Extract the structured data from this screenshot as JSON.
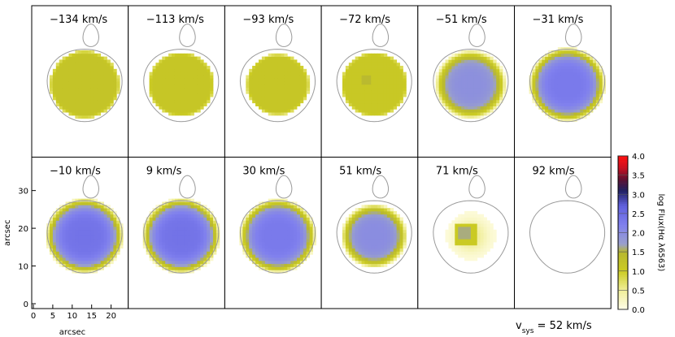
{
  "chart_data": {
    "type": "heatmap",
    "panels": [
      {
        "velocity_label": "−134 km/s",
        "velocity": -134,
        "peak": 1.2,
        "radius": 1.0,
        "hole": 0
      },
      {
        "velocity_label": "−113 km/s",
        "velocity": -113,
        "peak": 1.15,
        "radius": 0.95,
        "hole": 0
      },
      {
        "velocity_label": "−93 km/s",
        "velocity": -93,
        "peak": 1.15,
        "radius": 0.9,
        "hole": 0
      },
      {
        "velocity_label": "−72 km/s",
        "velocity": -72,
        "peak": 1.1,
        "radius": 0.95,
        "hole": 1
      },
      {
        "velocity_label": "−51 km/s",
        "velocity": -51,
        "peak": 1.95,
        "radius": 1.02,
        "hole": 0
      },
      {
        "velocity_label": "−31 km/s",
        "velocity": -31,
        "peak": 2.3,
        "radius": 1.1,
        "hole": 0
      },
      {
        "velocity_label": "−10 km/s",
        "velocity": -10,
        "peak": 2.4,
        "radius": 1.12,
        "hole": 0
      },
      {
        "velocity_label": "9 km/s",
        "velocity": 9,
        "peak": 2.4,
        "radius": 1.12,
        "hole": 0
      },
      {
        "velocity_label": "30 km/s",
        "velocity": 30,
        "peak": 2.3,
        "radius": 1.1,
        "hole": 0
      },
      {
        "velocity_label": "51 km/s",
        "velocity": 51,
        "peak": 2.0,
        "radius": 0.95,
        "hole": 0
      },
      {
        "velocity_label": "71 km/s",
        "velocity": 71,
        "peak": 1.2,
        "radius": 0.7,
        "hole": 2
      },
      {
        "velocity_label": "92 km/s",
        "velocity": 92,
        "peak": 0.0,
        "radius": 0.0,
        "hole": 0
      }
    ],
    "xlabel": "arcsec",
    "ylabel": "arcsec",
    "x_ticks": [
      "0",
      "5",
      "10",
      "15",
      "20"
    ],
    "y_ticks": [
      "0",
      "10",
      "20",
      "30"
    ],
    "xlim": [
      0,
      24
    ],
    "ylim": [
      0,
      38
    ],
    "colorbar": {
      "label": "log Flux(Hα λ6563)",
      "range": [
        0.0,
        4.0
      ],
      "ticks": [
        "0.0",
        "0.5",
        "1.0",
        "1.5",
        "2.0",
        "2.5",
        "3.0",
        "3.5",
        "4.0"
      ],
      "stops": [
        {
          "v": 0.0,
          "c": "#fffde8"
        },
        {
          "v": 0.5,
          "c": "#f0ee99"
        },
        {
          "v": 1.0,
          "c": "#cccc22"
        },
        {
          "v": 1.5,
          "c": "#b8b830"
        },
        {
          "v": 1.7,
          "c": "#9aa0cc"
        },
        {
          "v": 2.2,
          "c": "#8080ee"
        },
        {
          "v": 2.7,
          "c": "#6060dd"
        },
        {
          "v": 3.1,
          "c": "#202060"
        },
        {
          "v": 3.4,
          "c": "#601030"
        },
        {
          "v": 3.7,
          "c": "#cc1020"
        },
        {
          "v": 4.0,
          "c": "#ff1010"
        }
      ]
    },
    "systemic_velocity": {
      "prefix": "v",
      "subscript": "sys",
      "value_text": " = 52 km/s"
    }
  }
}
